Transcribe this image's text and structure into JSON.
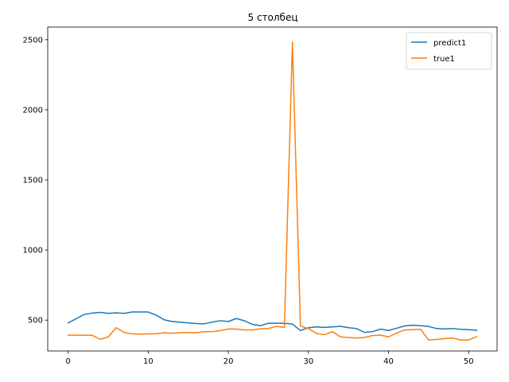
{
  "chart_data": {
    "type": "line",
    "title": "5 столбец",
    "xlabel": "",
    "ylabel": "",
    "xlim": [
      -2.55,
      53.55
    ],
    "ylim": [
      280,
      2590
    ],
    "xticks": [
      0,
      10,
      20,
      30,
      40,
      50
    ],
    "yticks": [
      500,
      1000,
      1500,
      2000,
      2500
    ],
    "grid": false,
    "legend_position": "top-right",
    "series": [
      {
        "name": "predict1",
        "color": "#1f77b4",
        "x": [
          0,
          1,
          2,
          3,
          4,
          5,
          6,
          7,
          8,
          9,
          10,
          11,
          12,
          13,
          14,
          15,
          16,
          17,
          18,
          19,
          20,
          21,
          22,
          23,
          24,
          25,
          26,
          27,
          28,
          29,
          30,
          31,
          32,
          33,
          34,
          35,
          36,
          37,
          38,
          39,
          40,
          41,
          42,
          43,
          44,
          45,
          46,
          47,
          48,
          49,
          50,
          51
        ],
        "y": [
          480,
          510,
          540,
          550,
          555,
          548,
          552,
          548,
          558,
          558,
          558,
          535,
          502,
          490,
          485,
          480,
          476,
          474,
          486,
          496,
          490,
          512,
          495,
          470,
          460,
          478,
          478,
          477,
          472,
          426,
          446,
          452,
          448,
          452,
          456,
          446,
          440,
          412,
          418,
          436,
          426,
          442,
          458,
          464,
          460,
          455,
          440,
          437,
          440,
          435,
          432,
          428
        ]
      },
      {
        "name": "true1",
        "color": "#ff7f0e",
        "x": [
          0,
          1,
          2,
          3,
          4,
          5,
          6,
          7,
          8,
          9,
          10,
          11,
          12,
          13,
          14,
          15,
          16,
          17,
          18,
          19,
          20,
          21,
          22,
          23,
          24,
          25,
          26,
          27,
          28,
          29,
          30,
          31,
          32,
          33,
          34,
          35,
          36,
          37,
          38,
          39,
          40,
          41,
          42,
          43,
          44,
          45,
          46,
          47,
          48,
          49,
          50,
          51
        ],
        "y": [
          393,
          393,
          392,
          392,
          363,
          380,
          446,
          412,
          402,
          400,
          402,
          403,
          410,
          406,
          410,
          412,
          410,
          418,
          418,
          425,
          437,
          436,
          430,
          430,
          438,
          440,
          455,
          448,
          2483,
          458,
          440,
          405,
          396,
          418,
          380,
          376,
          372,
          376,
          390,
          393,
          380,
          408,
          430,
          432,
          435,
          358,
          362,
          368,
          372,
          358,
          358,
          382
        ]
      }
    ]
  }
}
